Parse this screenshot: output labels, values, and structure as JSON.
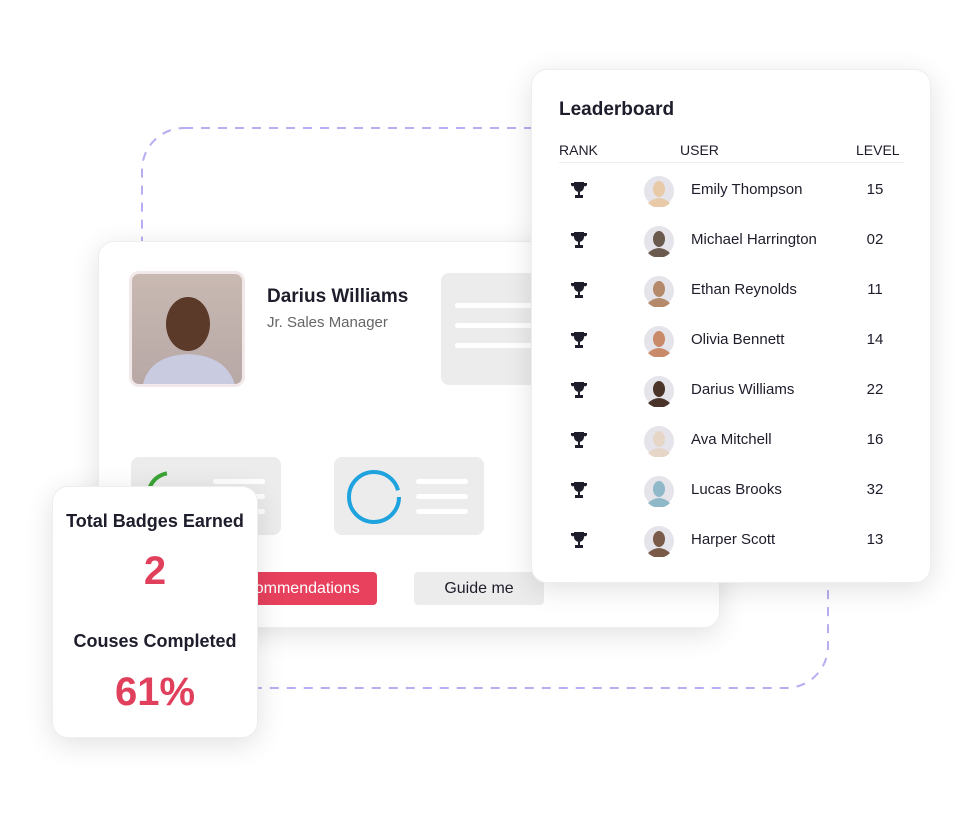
{
  "profile": {
    "name": "Darius Williams",
    "role": "Jr. Sales Manager",
    "buttons": [
      "Recommendations",
      "Guide me"
    ]
  },
  "leaderboard": {
    "title": "Leaderboard",
    "headers": [
      "RANK",
      "USER",
      "LEVEL"
    ],
    "rows": [
      {
        "user": "Emily Thompson",
        "level": "15"
      },
      {
        "user": "Michael Harrington",
        "level": "02"
      },
      {
        "user": "Ethan Reynolds",
        "level": "11"
      },
      {
        "user": "Olivia Bennett",
        "level": "14"
      },
      {
        "user": "Darius Williams",
        "level": "22"
      },
      {
        "user": "Ava Mitchell",
        "level": "16"
      },
      {
        "user": "Lucas Brooks",
        "level": "32"
      },
      {
        "user": "Harper Scott",
        "level": "13"
      }
    ]
  },
  "stats": {
    "badges_label": "Total Badges Earned",
    "badges_value": "2",
    "courses_label": "Couses Completed",
    "courses_value": "61%"
  }
}
